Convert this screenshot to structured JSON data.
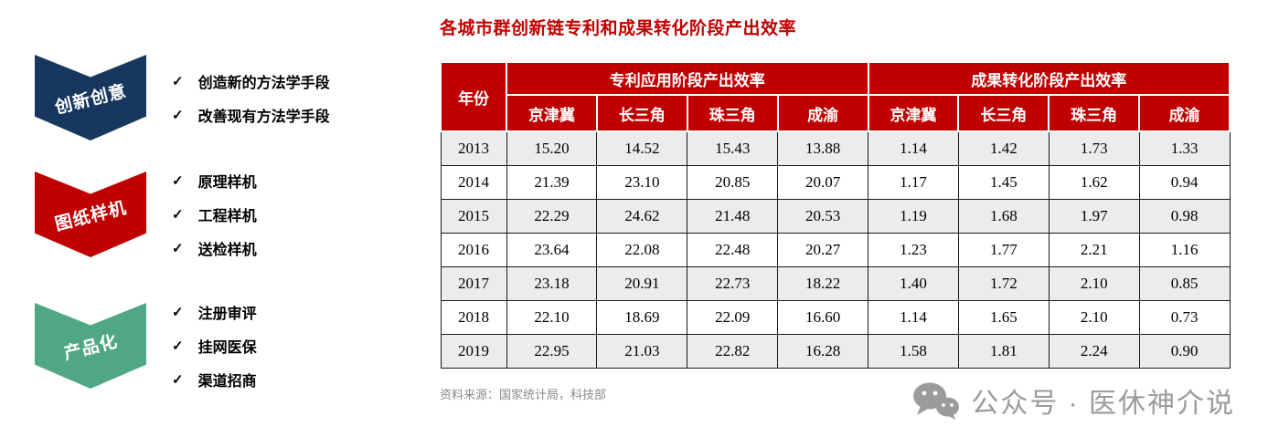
{
  "title": "各城市群创新链专利和成果转化阶段产出效率",
  "process": {
    "check_glyph": "✓",
    "stages": [
      {
        "label": "创新创意",
        "color": "#17375E",
        "items": [
          "创造新的方法学手段",
          "改善现有方法学手段"
        ]
      },
      {
        "label": "图纸样机",
        "color": "#C00000",
        "items": [
          "原理样机",
          "工程样机",
          "送检样机"
        ]
      },
      {
        "label": "产品化",
        "color": "#4FA784",
        "items": [
          "注册审评",
          "挂网医保",
          "渠道招商"
        ]
      }
    ]
  },
  "chart_data": {
    "type": "table",
    "title": "各城市群创新链专利和成果转化阶段产出效率",
    "year_header": "年份",
    "col_groups": [
      "专利应用阶段产出效率",
      "成果转化阶段产出效率"
    ],
    "sub_headers": [
      "京津冀",
      "长三角",
      "珠三角",
      "成渝"
    ],
    "rows": [
      {
        "year": "2013",
        "patent": [
          "15.20",
          "14.52",
          "15.43",
          "13.88"
        ],
        "transform": [
          "1.14",
          "1.42",
          "1.73",
          "1.33"
        ]
      },
      {
        "year": "2014",
        "patent": [
          "21.39",
          "23.10",
          "20.85",
          "20.07"
        ],
        "transform": [
          "1.17",
          "1.45",
          "1.62",
          "0.94"
        ]
      },
      {
        "year": "2015",
        "patent": [
          "22.29",
          "24.62",
          "21.48",
          "20.53"
        ],
        "transform": [
          "1.19",
          "1.68",
          "1.97",
          "0.98"
        ]
      },
      {
        "year": "2016",
        "patent": [
          "23.64",
          "22.08",
          "22.48",
          "20.27"
        ],
        "transform": [
          "1.23",
          "1.77",
          "2.21",
          "1.16"
        ]
      },
      {
        "year": "2017",
        "patent": [
          "23.18",
          "20.91",
          "22.73",
          "18.22"
        ],
        "transform": [
          "1.40",
          "1.72",
          "2.10",
          "0.85"
        ]
      },
      {
        "year": "2018",
        "patent": [
          "22.10",
          "18.69",
          "22.09",
          "16.60"
        ],
        "transform": [
          "1.14",
          "1.65",
          "2.10",
          "0.73"
        ]
      },
      {
        "year": "2019",
        "patent": [
          "22.95",
          "21.03",
          "22.82",
          "16.28"
        ],
        "transform": [
          "1.58",
          "1.81",
          "2.24",
          "0.90"
        ]
      }
    ]
  },
  "source": "资料来源：国家统计局，科技部",
  "watermark": "公众号 · 医休神介说"
}
